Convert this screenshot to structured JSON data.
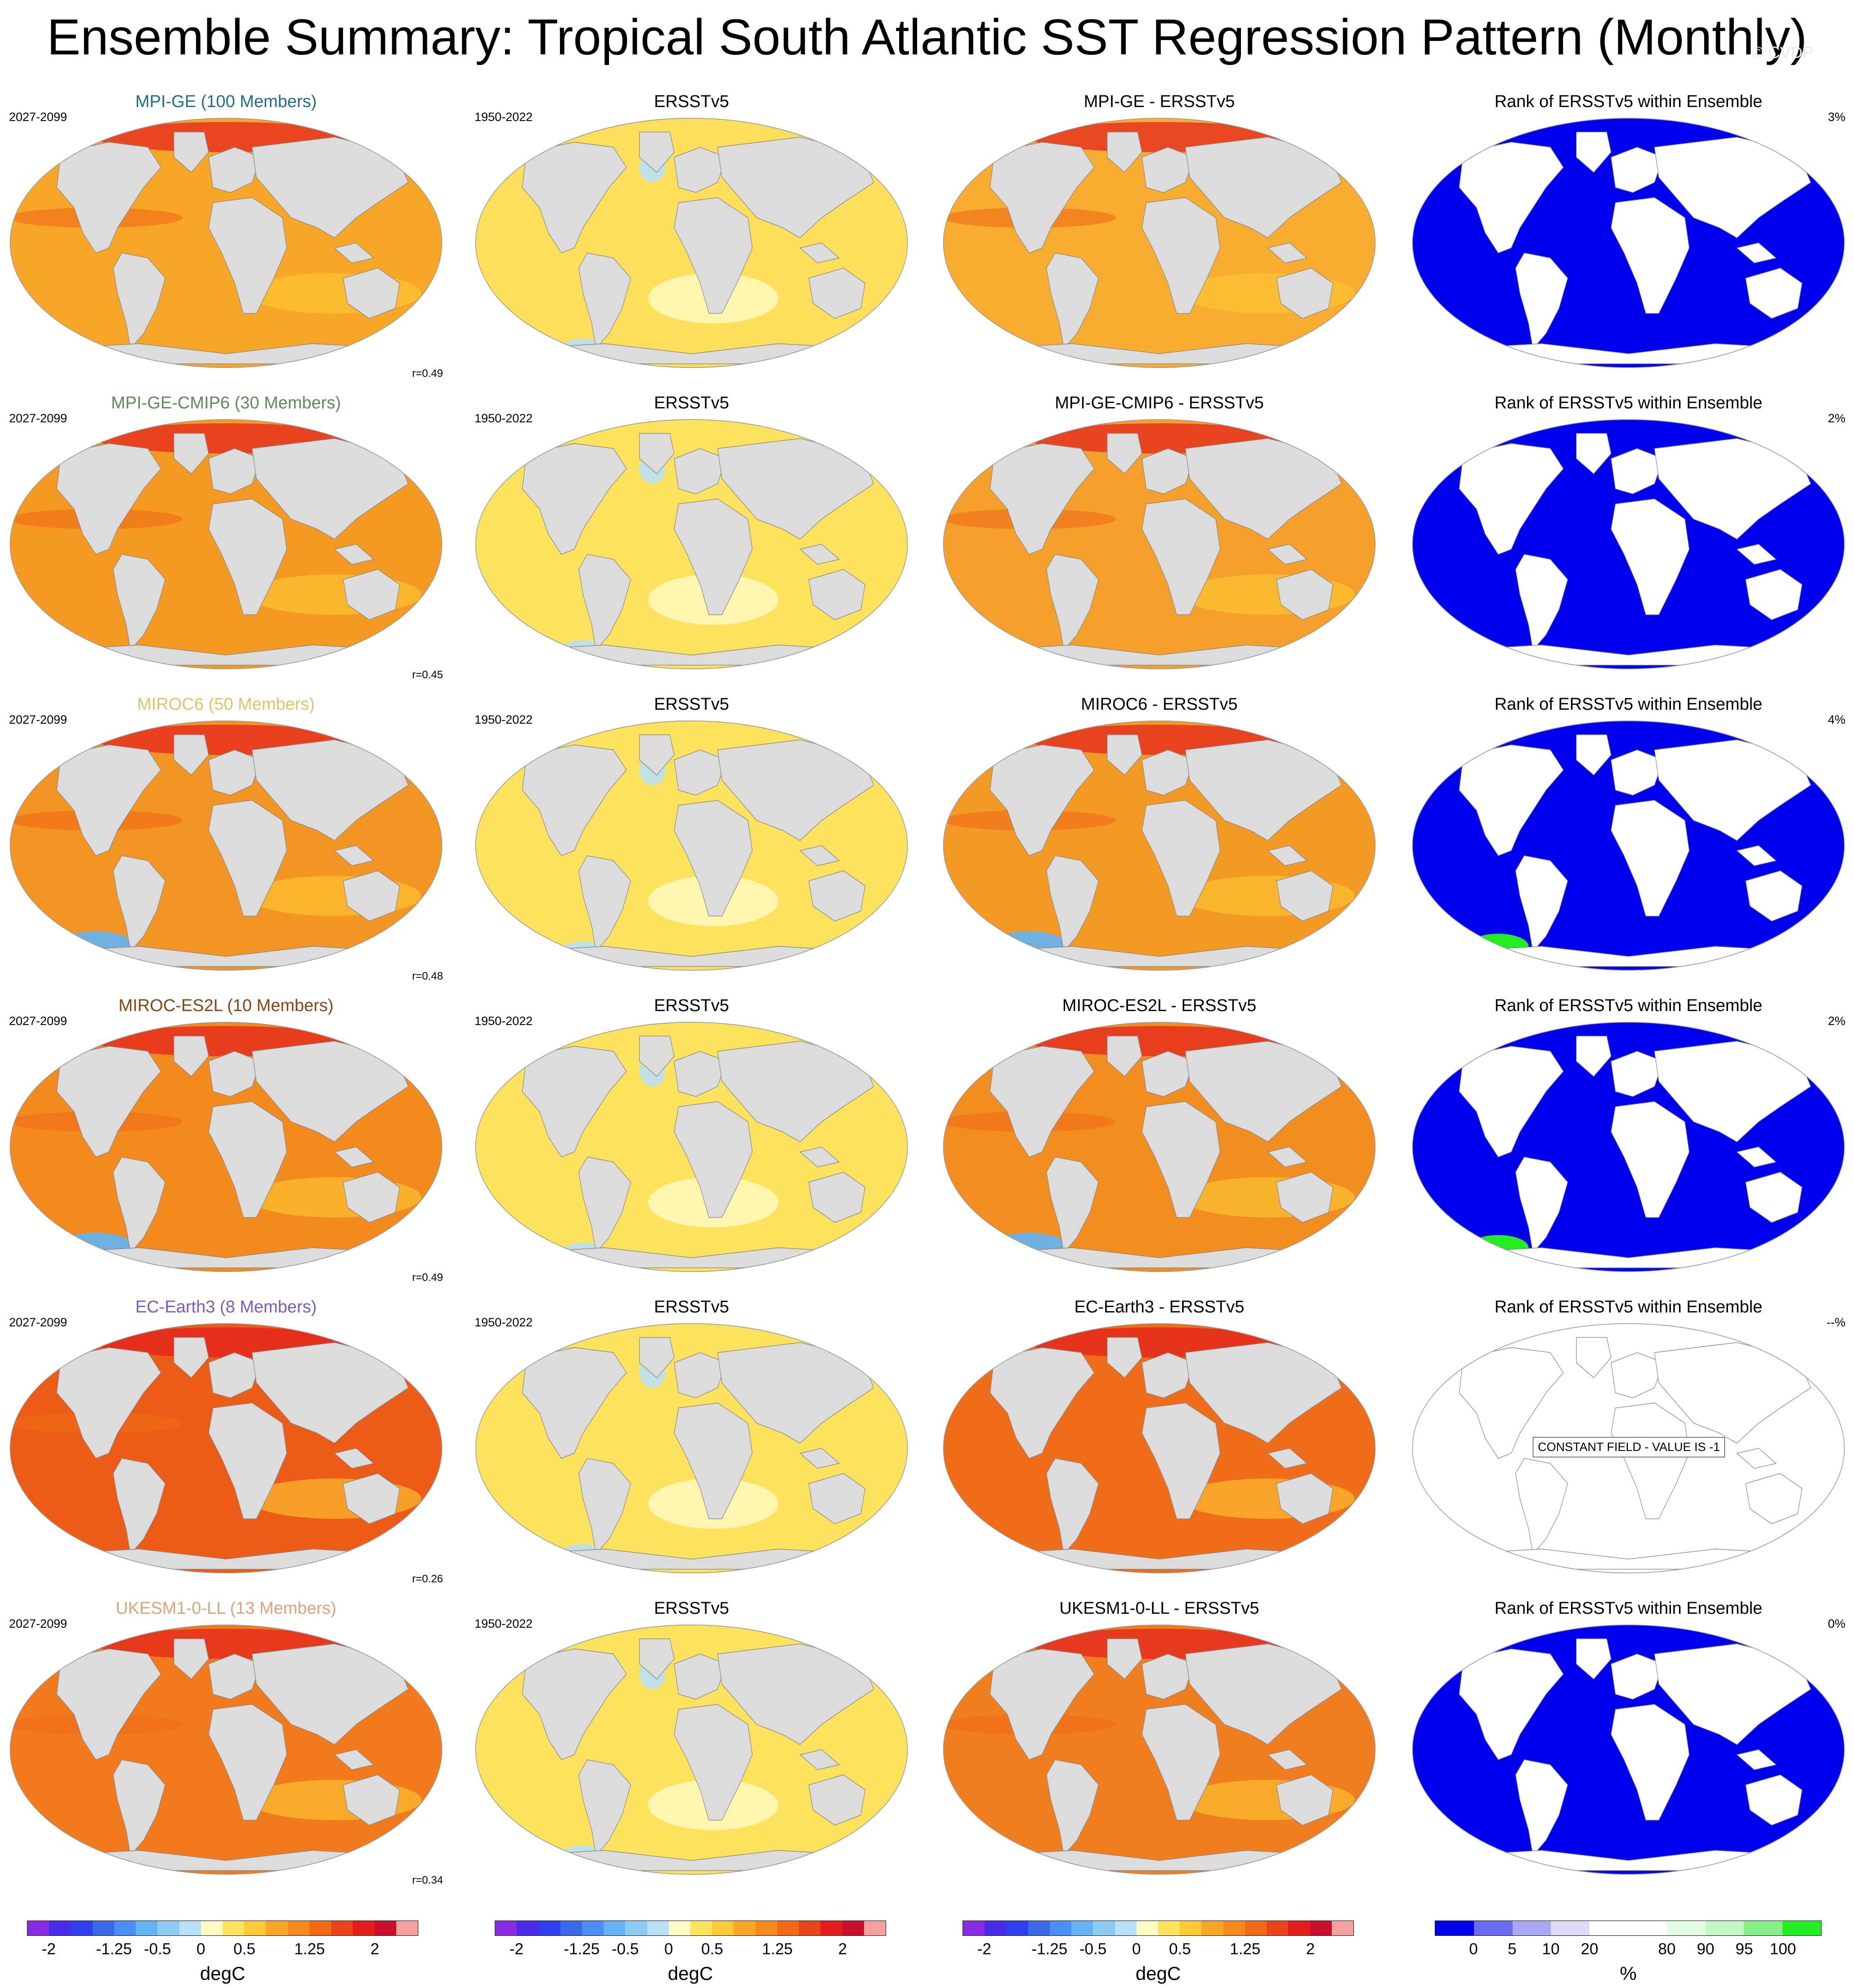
{
  "title": "Ensemble Summary: Tropical South Atlantic SST Regression Pattern (Monthly)",
  "watermark": "© CVDP",
  "obs_name": "ERSSTv5",
  "rank_title": "Rank of ERSSTv5 within Ensemble",
  "colors": {
    "land": "#dcdcdc",
    "rank_blue": "#0000ee",
    "rank_green": "#22ee22",
    "rank_white": "#ffffff"
  },
  "rows": [
    {
      "model_title": "MPI-GE (100 Members)",
      "model_color": "#1f6f8b",
      "model_period": "2027-2099",
      "obs_period": "1950-2022",
      "diff_title": "MPI-GE - ERSSTv5",
      "corr": "r=0.49",
      "rank_pct": "3%",
      "model_fill": "#f7a628",
      "obs_fill": "#fddf5b",
      "diff_fill": "#f8ac30",
      "rank_fill": "#0000ee"
    },
    {
      "model_title": "MPI-GE-CMIP6 (30 Members)",
      "model_color": "#5f8a5a",
      "model_period": "2027-2099",
      "obs_period": "1950-2022",
      "diff_title": "MPI-GE-CMIP6 - ERSSTv5",
      "corr": "r=0.45",
      "rank_pct": "2%",
      "model_fill": "#f49a22",
      "obs_fill": "#fde25e",
      "diff_fill": "#f5a02a",
      "rank_fill": "#0000ee"
    },
    {
      "model_title": "MIROC6 (50 Members)",
      "model_color": "#d9c56a",
      "model_period": "2027-2099",
      "obs_period": "1950-2022",
      "diff_title": "MIROC6 - ERSSTv5",
      "corr": "r=0.48",
      "rank_pct": "4%",
      "model_fill": "#f39522",
      "obs_fill": "#fde25e",
      "diff_fill": "#f39a24",
      "rank_fill": "#0000ee"
    },
    {
      "model_title": "MIROC-ES2L (10 Members)",
      "model_color": "#8b4513",
      "model_period": "2027-2099",
      "obs_period": "1950-2022",
      "diff_title": "MIROC-ES2L - ERSSTv5",
      "corr": "r=0.49",
      "rank_pct": "2%",
      "model_fill": "#f28a1e",
      "obs_fill": "#fde25e",
      "diff_fill": "#f28e20",
      "rank_fill": "#0000ee"
    },
    {
      "model_title": "EC-Earth3 (8 Members)",
      "model_color": "#7a5bc9",
      "model_period": "2027-2099",
      "obs_period": "1950-2022",
      "diff_title": "EC-Earth3 - ERSSTv5",
      "corr": "r=0.26",
      "rank_pct": "--%",
      "model_fill": "#ec5c16",
      "obs_fill": "#fde25e",
      "diff_fill": "#ef6c18",
      "rank_fill": "#ffffff",
      "constant_field": "CONSTANT FIELD - VALUE IS -1"
    },
    {
      "model_title": "UKESM1-0-LL (13 Members)",
      "model_color": "#e0a27a",
      "model_period": "2027-2099",
      "obs_period": "1950-2022",
      "diff_title": "UKESM1-0-LL - ERSSTv5",
      "corr": "r=0.34",
      "rank_pct": "0%",
      "model_fill": "#f17a1c",
      "obs_fill": "#fde25e",
      "diff_fill": "#f17e1e",
      "rank_fill": "#0000ee"
    }
  ],
  "sst_legend": {
    "colors": [
      "#8a2be2",
      "#4b2bea",
      "#2f3ff0",
      "#3a69e8",
      "#4b8ef5",
      "#62b4f5",
      "#8dcbf5",
      "#b8e1f5",
      "#fffac2",
      "#fde25e",
      "#fdc934",
      "#f8a628",
      "#f58a1e",
      "#f06a18",
      "#e8451a",
      "#e31c1c",
      "#c8102e",
      "#f5a0a0"
    ],
    "ticks": [
      "-2",
      "-1.25",
      "-0.5",
      "0",
      "0.5",
      "1.25",
      "2"
    ],
    "units": "degC"
  },
  "rank_legend": {
    "colors": [
      "#0000ee",
      "#6b6bf2",
      "#a8a8f5",
      "#dcdcf8",
      "#ffffff",
      "#ffffff",
      "#e4fbe4",
      "#c4f5c4",
      "#86ee86",
      "#22ee22"
    ],
    "ticks": [
      "0",
      "5",
      "10",
      "20",
      "80",
      "90",
      "95",
      "100"
    ],
    "units": "%"
  }
}
